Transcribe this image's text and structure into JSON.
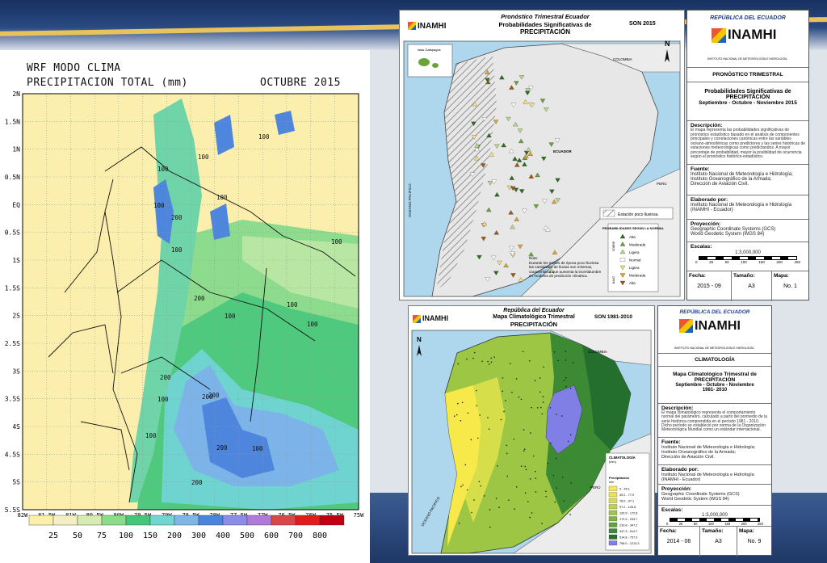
{
  "wrf": {
    "title_line1": "WRF MODO CLIMA",
    "title_line2": "PRECIPITACION TOTAL (mm)",
    "month": "OCTUBRE 2015",
    "lat_labels": [
      "2N",
      "1.5N",
      "1N",
      "0.5N",
      "EQ",
      "0.5S",
      "1S",
      "1.5S",
      "2S",
      "2.5S",
      "3S",
      "3.5S",
      "4S",
      "4.5S",
      "5S",
      "5.5S"
    ],
    "lon_labels": [
      "82W",
      "81.5W",
      "81W",
      "80.5W",
      "80W",
      "79.5W",
      "79W",
      "78.5W",
      "78W",
      "77.5W",
      "77W",
      "76.5W",
      "76W",
      "75.5W",
      "75W"
    ],
    "legend_values": [
      "25",
      "50",
      "75",
      "100",
      "150",
      "200",
      "300",
      "400",
      "500",
      "600",
      "700",
      "800"
    ],
    "legend_colors": [
      "#fcf0a8",
      "#f3efc2",
      "#d6ecb0",
      "#8bdc89",
      "#45c77a",
      "#6fd6d0",
      "#7eb6e8",
      "#4a84dc",
      "#8c8de8",
      "#b07bd8",
      "#d84848",
      "#e01c1c",
      "#c00010"
    ],
    "contour_labels": [
      "100",
      "100",
      "100",
      "100",
      "100",
      "200",
      "100",
      "100",
      "100",
      "200",
      "100",
      "100",
      "200",
      "200",
      "100",
      "200",
      "200",
      "100",
      "200",
      "100"
    ]
  },
  "forecast": {
    "header_line1": "Pronóstico Trimestral Ecuador",
    "header_line2": "Probabilidades Significativas de",
    "header_line3": "PRECIPITACIÓN",
    "period_code": "SON 2015",
    "logo": "INAMHI",
    "galapagos": "Islas Galápagos",
    "colombia": "COLOMBIA",
    "ecuador": "ECUADOR",
    "peru": "PERÚ",
    "ocean": "OCEANO PACIFICO",
    "hatch_legend": "Estación poco lluviosa",
    "prob_title": "PROBABILIDADES SEGÚN LA NORMAL",
    "prob_items": [
      "Alta",
      "Moderada",
      "Ligera",
      "Normal",
      "Ligera",
      "Moderada",
      "Alta"
    ],
    "prob_colors": [
      "#2e6b1e",
      "#6aa33a",
      "#b8d985",
      "#ffffff",
      "#f4df7a",
      "#e0a530",
      "#9a5a14"
    ],
    "sobre": "SOBRE",
    "bajo": "BAJO",
    "note_title": "Nota:",
    "note_text": "Durante los meses de época poco lluviosa las cantidades de lluvias son mínimas, característica que aumenta la incertidumbre en modelos de predicción climática."
  },
  "forecast_info": {
    "republic": "REPÚBLICA DEL ECUADOR",
    "logo": "INAMHI",
    "logo_sub": "INSTITUTO NACIONAL DE METEOROLOGÍA E HIDROLOGÍA",
    "section": "PRONÓSTICO TRIMESTRAL",
    "title1": "Probabilidades Significativas de",
    "title2": "PRECIPITACIÓN",
    "title3": "Septiembre - Octubre - Noviembre 2015",
    "desc_label": "Descripción:",
    "desc_text": "El mapa representa las probabilidades significativas de pronóstico estadístico basado en el análisis de componentes principales y correlaciones canónicas entre las variables océano-atmosféricas como predictores y las series históricas de estaciones meteorológicas como predictandos. A mayor porcentaje de probabilidad, mayor la posibilidad de ocurrencia según el pronóstico histórico-estadístico.",
    "source_label": "Fuente:",
    "source_lines": [
      "Instituto Nacional de Meteorología e Hidrología;",
      "Instituto Oceanográfico de la Armada;",
      "Dirección de Aviación Civil."
    ],
    "made_label": "Elaborado por:",
    "made_lines": [
      "Instituto Nacional de Meteorología e Hidrología",
      "(INAMHI - Ecuador)"
    ],
    "proj_label": "Proyección:",
    "proj_lines": [
      "Geographic Coordinate Systems (GCS)",
      "World Geodetic System (WGS 84)"
    ],
    "scale_label": "Escalas:",
    "scale_value": "1:3,000,000",
    "scale_ticks": [
      "0",
      "25",
      "50",
      "100",
      "150",
      "200",
      "250"
    ],
    "date_label": "Fecha:",
    "size_label": "Tamaño:",
    "map_label": "Mapa:",
    "date_value": "2015 - 09",
    "size_value": "A3",
    "map_value": "No. 1"
  },
  "climate": {
    "header_line1": "República del Ecuador",
    "header_line2": "Mapa Climatológico Trimestral",
    "header_line3": "PRECIPITACIÓN",
    "period_code": "SON 1981-2010",
    "logo": "INAMHI",
    "colombia": "COLOMBIA",
    "peru": "PERÚ",
    "ocean": "OCEANO PACIFICO",
    "legend_title": "CLIMATOLOGÍA",
    "legend_unit": "(mm)",
    "legend_sub": "Precipitación",
    "legend_mm": "mm",
    "legend_items": [
      "0 - 45.1",
      "45.2 - 77.9",
      "78.0 - 97.1",
      "97.2 - 126.8",
      "126.9 - 172.8",
      "172.9 - 233.7",
      "233.8 - 347.2",
      "347.3 - 514.7",
      "514.8 - 757.9",
      "758.0 - 1213.3"
    ],
    "legend_colors": [
      "#f7e94a",
      "#e9e64a",
      "#d6df4a",
      "#bcd448",
      "#9cc644",
      "#7db53f",
      "#5ea23b",
      "#3d8a35",
      "#246f2e",
      "#7f7fe6"
    ]
  },
  "climate_info": {
    "republic": "REPÚBLICA DEL ECUADOR",
    "logo": "INAMHI",
    "logo_sub": "INSTITUTO NACIONAL DE METEOROLOGÍA E HIDROLOGÍA",
    "section": "CLIMATOLOGÍA",
    "title1": "Mapa Climatológico Trimestral de",
    "title2": "PRECIPITACIÓN",
    "title3": "Septiembre - Octubre - Noviembre",
    "title4": "1981- 2010",
    "desc_label": "Descripción:",
    "desc_text": "El mapa climatológico representa el comportamiento normal del parámetro, calculado a partir del promedio de la serie histórica comprendida en el período 1981 - 2010. Dicho período se estableció por norma de la Organización Meteorológica Mundial como un estándar internacional.",
    "source_label": "Fuente:",
    "source_lines": [
      "Instituto Nacional de Meteorología e Hidrología;",
      "Instituto Oceanográfico de la Armada;",
      "Dirección de Aviación Civil."
    ],
    "made_label": "Elaborado por:",
    "made_lines": [
      "Instituto Nacional de Meteorología e Hidrología",
      "(INAMHI - Ecuador)"
    ],
    "proj_label": "Proyección:",
    "proj_lines": [
      "Geographic Coordinate Systems (GCS)",
      "World Geodetic System (WGS 84)"
    ],
    "scale_label": "Escalas:",
    "scale_value": "1:3,000,000",
    "scale_ticks": [
      "0",
      "25",
      "50",
      "100",
      "150",
      "200",
      "250"
    ],
    "date_label": "Fecha:",
    "size_label": "Tamaño:",
    "map_label": "Mapa:",
    "date_value": "2014 - 06",
    "size_value": "A3",
    "map_value": "No. 9"
  }
}
